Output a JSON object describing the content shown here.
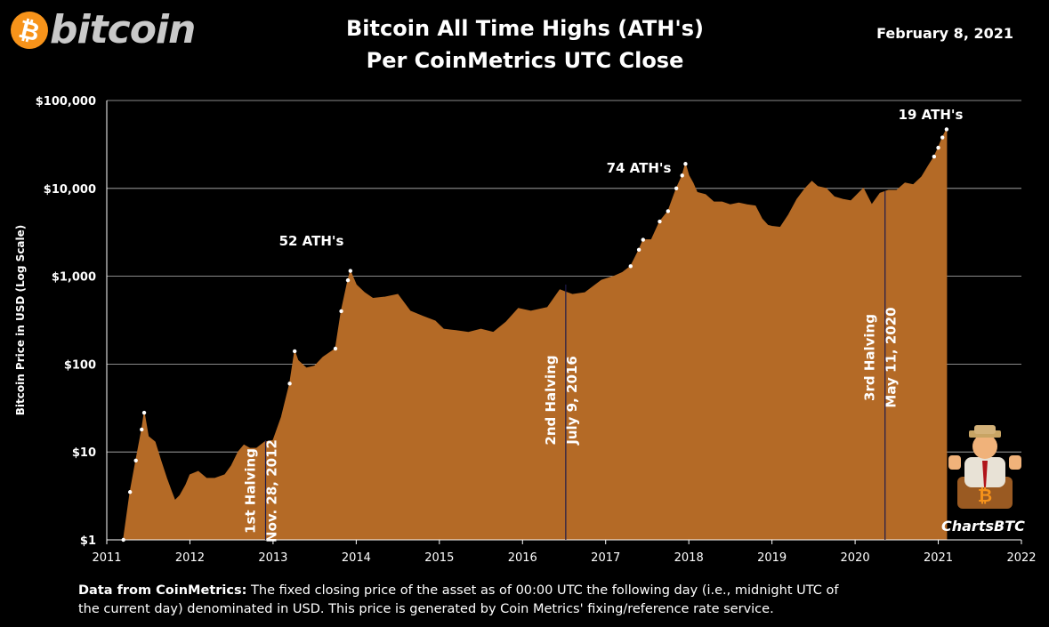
{
  "header": {
    "logo_symbol": "₿",
    "logo_text": "bitcoin",
    "title_line1": "Bitcoin All Time Highs (ATH's)",
    "title_line2": "Per CoinMetrics UTC Close",
    "date": "February 8, 2021"
  },
  "footer": {
    "bold": "Data from CoinMetrics:",
    "text": " The fixed closing price of the asset as of 00:00 UTC the following day (i.e., midnight UTC of the current day) denominated in USD. This price is generated by Coin Metrics' fixing/reference rate service."
  },
  "brand": "ChartsBTC",
  "colors": {
    "fill": "#b46a26",
    "background": "#000000",
    "grid": "#b8b8b8",
    "ath_marker": "#ffffff",
    "logo": "#f7931a"
  },
  "chart_data": {
    "type": "area",
    "ylabel": "Bitcoin Price in USD (Log Scale)",
    "xlabel": "",
    "y_scale": "log",
    "ylim": [
      1,
      100000
    ],
    "xlim": [
      2011,
      2022
    ],
    "grid": "horizontal",
    "y_ticks": [
      "$1",
      "$10",
      "$100",
      "$1,000",
      "$10,000",
      "$100,000"
    ],
    "x_ticks": [
      "2011",
      "2012",
      "2013",
      "2014",
      "2015",
      "2016",
      "2017",
      "2018",
      "2019",
      "2020",
      "2021",
      "2022"
    ],
    "series": [
      {
        "x": [
          2011.0,
          2011.12,
          2011.2,
          2011.28,
          2011.35,
          2011.42,
          2011.45,
          2011.5,
          2011.58,
          2011.65,
          2011.72,
          2011.78,
          2011.82,
          2011.88,
          2011.95,
          2012.0,
          2012.1,
          2012.2,
          2012.3,
          2012.42,
          2012.5,
          2012.58,
          2012.65,
          2012.72,
          2012.8,
          2012.9,
          2013.0,
          2013.1,
          2013.2,
          2013.26,
          2013.3,
          2013.4,
          2013.5,
          2013.6,
          2013.75,
          2013.82,
          2013.9,
          2013.93,
          2014.0,
          2014.1,
          2014.2,
          2014.35,
          2014.5,
          2014.65,
          2014.8,
          2014.95,
          2015.05,
          2015.2,
          2015.35,
          2015.5,
          2015.65,
          2015.8,
          2015.95,
          2016.1,
          2016.3,
          2016.45,
          2016.6,
          2016.75,
          2016.95,
          2017.1,
          2017.2,
          2017.3,
          2017.4,
          2017.45,
          2017.55,
          2017.65,
          2017.75,
          2017.85,
          2017.92,
          2017.96,
          2018.0,
          2018.05,
          2018.1,
          2018.2,
          2018.3,
          2018.4,
          2018.5,
          2018.6,
          2018.7,
          2018.8,
          2018.88,
          2018.95,
          2019.0,
          2019.1,
          2019.2,
          2019.3,
          2019.4,
          2019.48,
          2019.55,
          2019.65,
          2019.75,
          2019.85,
          2019.95,
          2020.05,
          2020.1,
          2020.2,
          2020.3,
          2020.4,
          2020.5,
          2020.6,
          2020.7,
          2020.8,
          2020.88,
          2020.95,
          2021.0,
          2021.05,
          2021.1
        ],
        "y": [
          0.3,
          0.9,
          1.0,
          3.5,
          8,
          18,
          28,
          15,
          13,
          8,
          5,
          3.5,
          2.8,
          3.2,
          4.2,
          5.5,
          6,
          5,
          5,
          5.5,
          7,
          10,
          12,
          11,
          11,
          13,
          13.5,
          25,
          60,
          140,
          110,
          90,
          95,
          120,
          150,
          400,
          900,
          1150,
          800,
          650,
          560,
          580,
          620,
          400,
          350,
          310,
          250,
          240,
          230,
          250,
          230,
          300,
          430,
          400,
          440,
          700,
          620,
          650,
          900,
          1000,
          1100,
          1300,
          2000,
          2600,
          2600,
          4200,
          5500,
          10000,
          14000,
          19000,
          14000,
          11500,
          9000,
          8500,
          7000,
          7000,
          6500,
          6800,
          6500,
          6300,
          4500,
          3800,
          3700,
          3600,
          5000,
          7500,
          10000,
          12000,
          10500,
          10000,
          8000,
          7500,
          7200,
          9000,
          10000,
          6500,
          8800,
          9500,
          9500,
          11500,
          11000,
          13500,
          18000,
          23000,
          29000,
          38000,
          47000
        ]
      }
    ],
    "ath_groups": [
      {
        "label": "52 ATH's"
      },
      {
        "label": "74 ATH's"
      },
      {
        "label": "19 ATH's"
      }
    ],
    "halvings": [
      {
        "x": 2012.91,
        "line1": "1st Halving",
        "line2": "Nov. 28, 2012"
      },
      {
        "x": 2016.52,
        "line1": "2nd Halving",
        "line2": "July 9, 2016"
      },
      {
        "x": 2020.36,
        "line1": "3rd Halving",
        "line2": "May 11, 2020"
      }
    ]
  }
}
